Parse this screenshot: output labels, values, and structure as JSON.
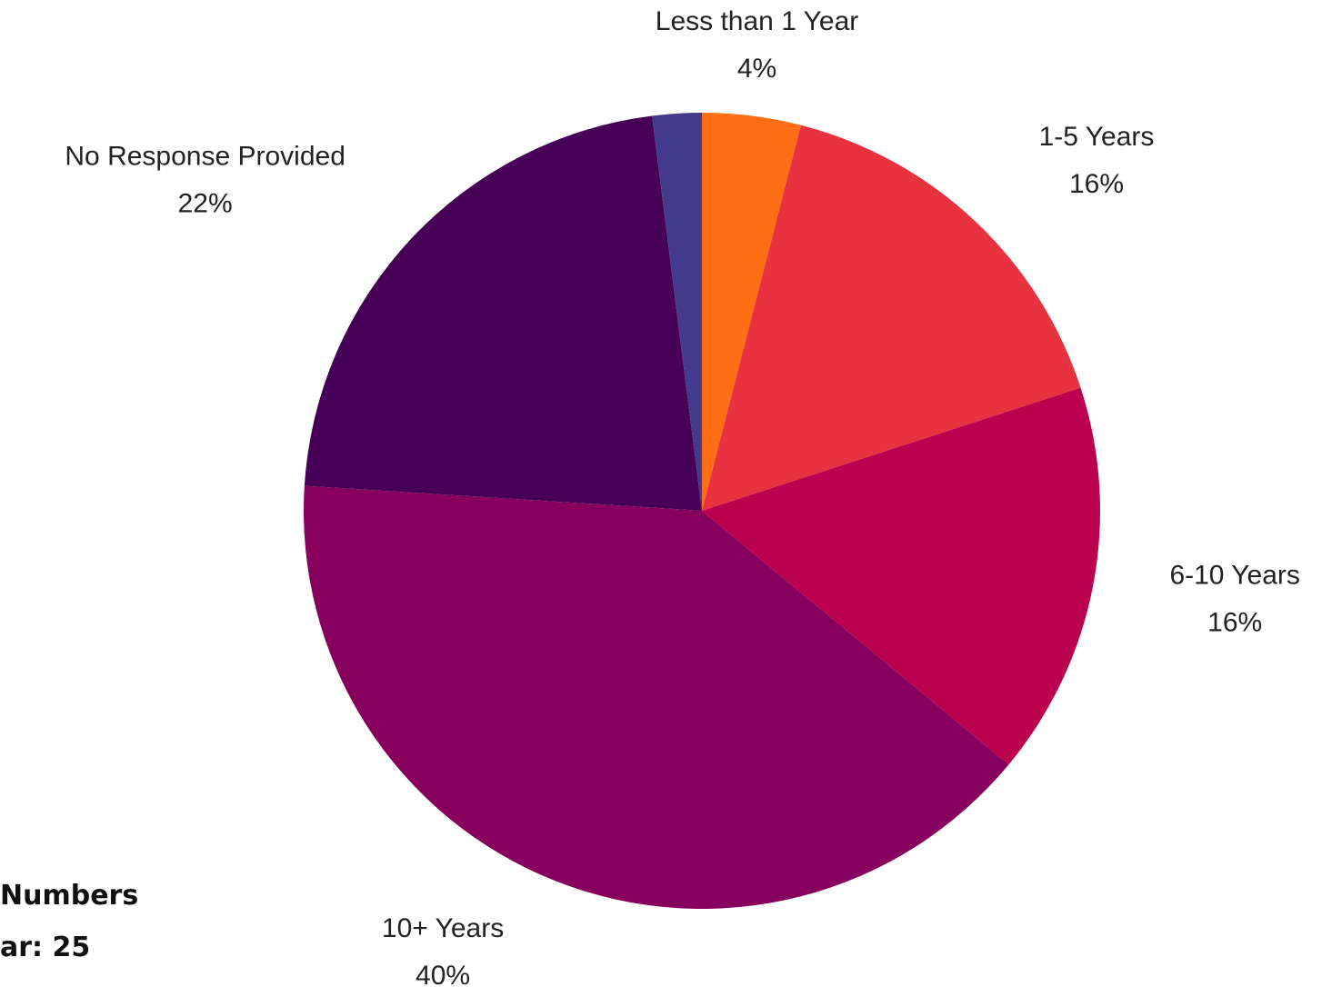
{
  "chart_data": {
    "type": "pie",
    "categories": [
      "Less than 1 Year",
      "1-5 Years",
      "6-10 Years",
      "10+ Years",
      "No Response Provided",
      null
    ],
    "values": [
      4,
      16,
      16,
      40,
      22,
      2
    ],
    "value_labels": [
      "4%",
      "16%",
      "16%",
      "40%",
      "22%",
      null
    ],
    "colors": [
      "#fd6e15",
      "#e8323f",
      "#bc0050",
      "#88005d",
      "#460055",
      "#433a8c"
    ],
    "notes": [
      "Numbers",
      "ar: 25"
    ]
  }
}
